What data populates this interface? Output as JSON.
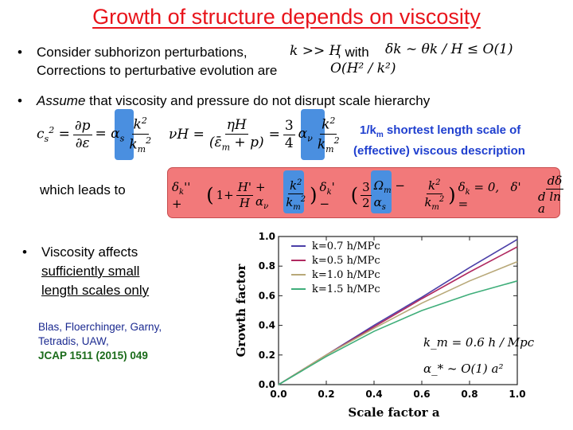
{
  "slide": {
    "title": "Growth of structure depends on viscosity",
    "bullet1_prefix": "Consider subhorizon perturbations,",
    "bullet1_cond": "k >> H",
    "bullet1_with": ", with",
    "bullet1_delta": "δk ~ θk / H ≤ O(1)",
    "bullet1_line2": "Corrections to perturbative evolution are",
    "bullet1_corr": "O(H² / k²)",
    "bullet2_italic": "Assume",
    "bullet2_rest": " that viscosity and pressure do not disrupt scale hierarchy",
    "eq_cs": "c_s² = ∂p/∂ε = α_s k²/k_m²",
    "eq_visc": "νH = ηH/(ε̄_m + p) = (3/4) α_ν k²/k_m²",
    "annotation_line1": "1/k",
    "annotation_sub": "m",
    "annotation_line1_rest": " shortest length scale of",
    "annotation_line2": "(effective) viscous description",
    "leads_to": "which leads to",
    "eq_main": "δk'' + (1 + H'/H + α_ν k²/k_m²) δk' − (3/2 Ω_m − α_s k²/k_m²) δk = 0,  δ' = dδ/d ln a",
    "bullet3_line1": "Viscosity affects",
    "bullet3_line2": "sufficiently small",
    "bullet3_line3": "length scales only",
    "ref_line1": "Blas, Floerchinger, Garny,",
    "ref_line2": "Tetradis, UAW,",
    "ref_line3": "JCAP 1511 (2015) 049",
    "plot_annot_km": "k_m = 0.6 h / Mpc",
    "plot_annot_alpha": "α_* ~ O(1) a²"
  },
  "chart_data": {
    "type": "line",
    "xlabel": "Scale factor a",
    "ylabel": "Growth factor",
    "xlim": [
      0.0,
      1.0
    ],
    "ylim": [
      0.0,
      1.0
    ],
    "xticks": [
      "0.0",
      "0.2",
      "0.4",
      "0.6",
      "0.8",
      "1.0"
    ],
    "yticks": [
      "0.0",
      "0.2",
      "0.4",
      "0.6",
      "0.8",
      "1.0"
    ],
    "grid": false,
    "legend_position": "top-left",
    "series": [
      {
        "name": "k=0.7 h/MPc",
        "color": "#4b3fa8",
        "x": [
          0.0,
          0.2,
          0.4,
          0.6,
          0.8,
          1.0
        ],
        "y": [
          0.0,
          0.2,
          0.4,
          0.59,
          0.79,
          0.98
        ]
      },
      {
        "name": "k=0.5 h/MPc",
        "color": "#b02a60",
        "x": [
          0.0,
          0.2,
          0.4,
          0.6,
          0.8,
          1.0
        ],
        "y": [
          0.0,
          0.2,
          0.39,
          0.58,
          0.76,
          0.93
        ]
      },
      {
        "name": "k=1.0 h/MPc",
        "color": "#b8a878",
        "x": [
          0.0,
          0.2,
          0.4,
          0.6,
          0.8,
          1.0
        ],
        "y": [
          0.0,
          0.2,
          0.38,
          0.55,
          0.7,
          0.83
        ]
      },
      {
        "name": "k=1.5 h/MPc",
        "color": "#3fae7a",
        "x": [
          0.0,
          0.2,
          0.4,
          0.6,
          0.8,
          1.0
        ],
        "y": [
          0.0,
          0.19,
          0.36,
          0.5,
          0.61,
          0.7
        ]
      }
    ]
  }
}
